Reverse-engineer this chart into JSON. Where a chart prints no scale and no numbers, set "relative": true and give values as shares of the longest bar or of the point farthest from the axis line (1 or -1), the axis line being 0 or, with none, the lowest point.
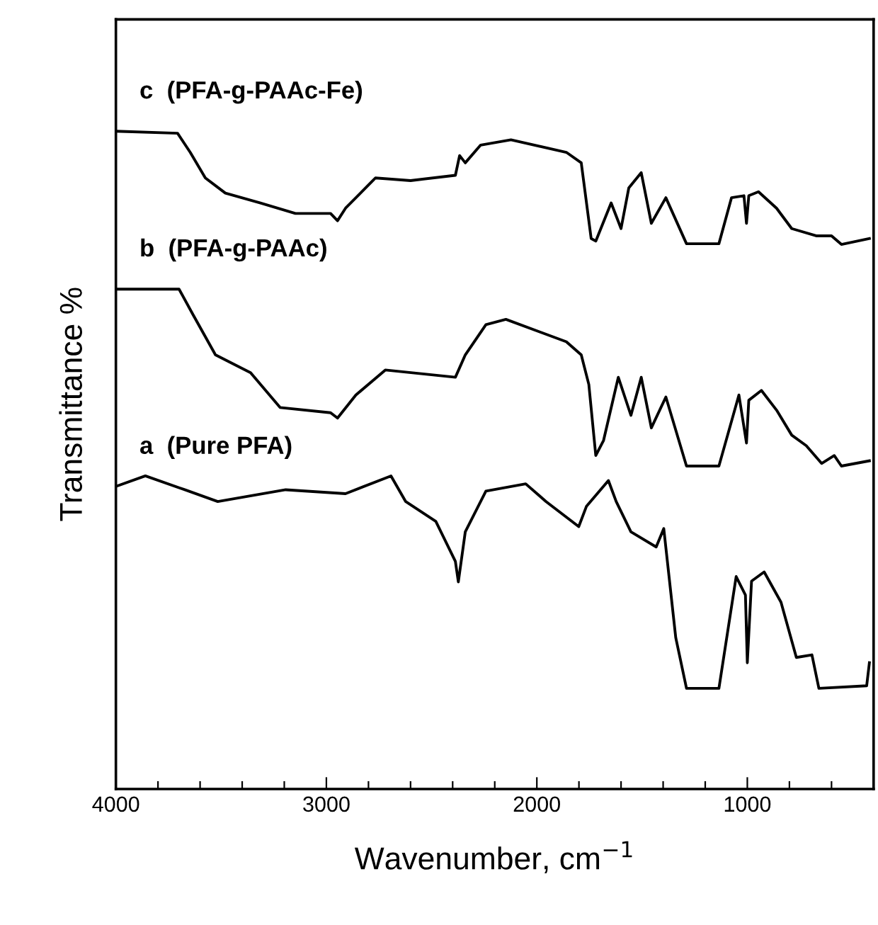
{
  "chart_data": {
    "type": "line",
    "relative": true,
    "xlabel": "Wavenumber, cm$^{−1}$",
    "ylabel": "Transmittance %",
    "xlim": [
      4000,
      400
    ],
    "xticks": [
      4000,
      {
        "value": 3800,
        "label": null
      },
      {
        "value": 3600,
        "label": null
      },
      {
        "value": 3400,
        "label": null
      },
      {
        "value": 3200,
        "label": null
      },
      3000,
      {
        "value": 2800,
        "label": null
      },
      {
        "value": 2600,
        "label": null
      },
      {
        "value": 2400,
        "label": null
      },
      {
        "value": 2200,
        "label": null
      },
      2000,
      {
        "value": 1800,
        "label": null
      },
      {
        "value": 1600,
        "label": null
      },
      {
        "value": 1400,
        "label": null
      },
      {
        "value": 1200,
        "label": null
      },
      1000,
      {
        "value": 800,
        "label": null
      },
      {
        "value": 600,
        "label": null
      }
    ],
    "tick_labels": "x",
    "grid": false,
    "legend": false,
    "marker": "none",
    "line_style": "solid",
    "series": [
      {
        "name": "c  (PFA-g-PAAc-Fe)",
        "color": "#000000",
        "x": [
          4000,
          3707,
          3647,
          3575,
          3480,
          3313,
          3147,
          2980,
          2947,
          2909,
          2767,
          2600,
          2387,
          2367,
          2340,
          2267,
          2123,
          1860,
          1789,
          1742,
          1720,
          1647,
          1600,
          1563,
          1504,
          1456,
          1387,
          1289,
          1135,
          1075,
          1016,
          1004,
          993,
          947,
          861,
          789,
          673,
          600,
          553,
          420
        ],
        "values": [
          1.0,
          0.997,
          0.968,
          0.929,
          0.906,
          0.891,
          0.875,
          0.875,
          0.864,
          0.883,
          0.929,
          0.925,
          0.933,
          0.963,
          0.952,
          0.979,
          0.987,
          0.968,
          0.952,
          0.837,
          0.833,
          0.891,
          0.852,
          0.914,
          0.937,
          0.86,
          0.899,
          0.829,
          0.829,
          0.899,
          0.902,
          0.86,
          0.902,
          0.908,
          0.883,
          0.852,
          0.841,
          0.841,
          0.828,
          0.837
        ]
      },
      {
        "name": "b  (PFA-g-PAAc)",
        "color": "#000000",
        "x": [
          4000,
          3700,
          3635,
          3527,
          3360,
          3220,
          2980,
          2947,
          2860,
          2720,
          2387,
          2340,
          2242,
          2147,
          1860,
          1789,
          1753,
          1720,
          1683,
          1613,
          1553,
          1504,
          1456,
          1387,
          1289,
          1135,
          1040,
          1004,
          993,
          933,
          861,
          789,
          720,
          647,
          587,
          553,
          420
        ],
        "values": [
          0.76,
          0.76,
          0.722,
          0.66,
          0.633,
          0.58,
          0.572,
          0.564,
          0.599,
          0.637,
          0.626,
          0.66,
          0.706,
          0.714,
          0.68,
          0.66,
          0.615,
          0.507,
          0.53,
          0.626,
          0.568,
          0.626,
          0.549,
          0.596,
          0.491,
          0.491,
          0.599,
          0.526,
          0.591,
          0.606,
          0.576,
          0.538,
          0.522,
          0.495,
          0.507,
          0.491,
          0.499
        ]
      },
      {
        "name": "a  (Pure PFA)",
        "color": "#000000",
        "x": [
          4000,
          3860,
          3673,
          3516,
          3193,
          2909,
          2693,
          2623,
          2480,
          2387,
          2373,
          2340,
          2242,
          2053,
          1956,
          1801,
          1764,
          1660,
          1623,
          1553,
          1433,
          1397,
          1340,
          1289,
          1135,
          1053,
          1009,
          1000,
          980,
          920,
          840,
          767,
          693,
          660,
          433,
          420
        ],
        "values": [
          0.46,
          0.476,
          0.455,
          0.437,
          0.455,
          0.449,
          0.476,
          0.437,
          0.407,
          0.346,
          0.315,
          0.391,
          0.453,
          0.464,
          0.437,
          0.399,
          0.43,
          0.469,
          0.437,
          0.391,
          0.368,
          0.396,
          0.23,
          0.153,
          0.153,
          0.323,
          0.295,
          0.192,
          0.316,
          0.33,
          0.284,
          0.2,
          0.204,
          0.153,
          0.157,
          0.192
        ]
      }
    ]
  }
}
